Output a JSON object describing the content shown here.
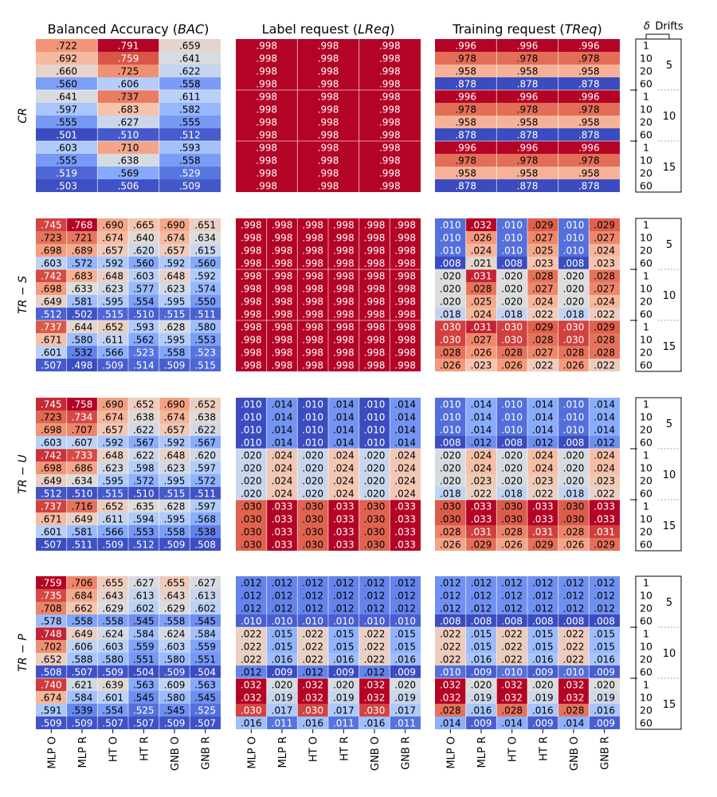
{
  "chart_data": {
    "type": "heatmap",
    "color_scale": {
      "name": "coolwarm",
      "low": "#3b4cc0",
      "mid": "#dddddd",
      "high": "#b40426"
    },
    "column_titles": {
      "bac_prefix": "Balanced Accuracy (",
      "bac_sym": "BAC",
      "bac_suffix": ")",
      "lreq_prefix": "Label request (",
      "lreq_sym": "LReq",
      "lreq_suffix": ")",
      "treq_prefix": "Training request (",
      "treq_sym": "TReq",
      "treq_suffix": ")"
    },
    "side_header": {
      "delta": "δ",
      "drifts": "Drifts"
    },
    "x_tick_labels": [
      "MLP O",
      "MLP R",
      "HT O",
      "HT R",
      "GNB O",
      "GNB R"
    ],
    "cr_x_tick_labels": [
      "MLP",
      "HT",
      "GNB"
    ],
    "delta_values": [
      "1",
      "10",
      "20",
      "60"
    ],
    "drift_values": [
      "5",
      "10",
      "15"
    ],
    "rows": [
      {
        "label": "CR",
        "bac": [
          [
            ".722",
            ".791",
            ".659"
          ],
          [
            ".692",
            ".759",
            ".641"
          ],
          [
            ".660",
            ".725",
            ".622"
          ],
          [
            ".560",
            ".606",
            ".558"
          ],
          [
            ".641",
            ".737",
            ".611"
          ],
          [
            ".597",
            ".683",
            ".582"
          ],
          [
            ".555",
            ".627",
            ".555"
          ],
          [
            ".501",
            ".510",
            ".512"
          ],
          [
            ".603",
            ".710",
            ".593"
          ],
          [
            ".555",
            ".638",
            ".558"
          ],
          [
            ".519",
            ".569",
            ".529"
          ],
          [
            ".503",
            ".506",
            ".509"
          ]
        ],
        "lreq": [
          [
            ".998",
            ".998",
            ".998"
          ],
          [
            ".998",
            ".998",
            ".998"
          ],
          [
            ".998",
            ".998",
            ".998"
          ],
          [
            ".998",
            ".998",
            ".998"
          ],
          [
            ".998",
            ".998",
            ".998"
          ],
          [
            ".998",
            ".998",
            ".998"
          ],
          [
            ".998",
            ".998",
            ".998"
          ],
          [
            ".998",
            ".998",
            ".998"
          ],
          [
            ".998",
            ".998",
            ".998"
          ],
          [
            ".998",
            ".998",
            ".998"
          ],
          [
            ".998",
            ".998",
            ".998"
          ],
          [
            ".998",
            ".998",
            ".998"
          ]
        ],
        "treq": [
          [
            ".996",
            ".996",
            ".996"
          ],
          [
            ".978",
            ".978",
            ".978"
          ],
          [
            ".958",
            ".958",
            ".958"
          ],
          [
            ".878",
            ".878",
            ".878"
          ],
          [
            ".996",
            ".996",
            ".996"
          ],
          [
            ".978",
            ".978",
            ".978"
          ],
          [
            ".958",
            ".958",
            ".958"
          ],
          [
            ".878",
            ".878",
            ".878"
          ],
          [
            ".996",
            ".996",
            ".996"
          ],
          [
            ".978",
            ".978",
            ".978"
          ],
          [
            ".958",
            ".958",
            ".958"
          ],
          [
            ".878",
            ".878",
            ".878"
          ]
        ]
      },
      {
        "label": "TR − S",
        "bac": [
          [
            ".745",
            ".768",
            ".690",
            ".665",
            ".690",
            ".651"
          ],
          [
            ".723",
            ".721",
            ".674",
            ".640",
            ".674",
            ".634"
          ],
          [
            ".698",
            ".689",
            ".657",
            ".620",
            ".657",
            ".615"
          ],
          [
            ".603",
            ".572",
            ".592",
            ".560",
            ".592",
            ".560"
          ],
          [
            ".742",
            ".683",
            ".648",
            ".603",
            ".648",
            ".592"
          ],
          [
            ".698",
            ".633",
            ".623",
            ".577",
            ".623",
            ".574"
          ],
          [
            ".649",
            ".581",
            ".595",
            ".554",
            ".595",
            ".550"
          ],
          [
            ".512",
            ".502",
            ".515",
            ".510",
            ".515",
            ".511"
          ],
          [
            ".737",
            ".644",
            ".652",
            ".593",
            ".628",
            ".580"
          ],
          [
            ".671",
            ".580",
            ".611",
            ".562",
            ".595",
            ".553"
          ],
          [
            ".601",
            ".532",
            ".566",
            ".523",
            ".558",
            ".523"
          ],
          [
            ".507",
            ".498",
            ".509",
            ".514",
            ".509",
            ".515"
          ]
        ],
        "lreq": [
          [
            ".998",
            ".998",
            ".998",
            ".998",
            ".998",
            ".998"
          ],
          [
            ".998",
            ".998",
            ".998",
            ".998",
            ".998",
            ".998"
          ],
          [
            ".998",
            ".998",
            ".998",
            ".998",
            ".998",
            ".998"
          ],
          [
            ".998",
            ".998",
            ".998",
            ".998",
            ".998",
            ".998"
          ],
          [
            ".998",
            ".998",
            ".998",
            ".998",
            ".998",
            ".998"
          ],
          [
            ".998",
            ".998",
            ".998",
            ".998",
            ".998",
            ".998"
          ],
          [
            ".998",
            ".998",
            ".998",
            ".998",
            ".998",
            ".998"
          ],
          [
            ".998",
            ".998",
            ".998",
            ".998",
            ".998",
            ".998"
          ],
          [
            ".998",
            ".998",
            ".998",
            ".998",
            ".998",
            ".998"
          ],
          [
            ".998",
            ".998",
            ".998",
            ".998",
            ".998",
            ".998"
          ],
          [
            ".998",
            ".998",
            ".998",
            ".998",
            ".998",
            ".998"
          ],
          [
            ".998",
            ".998",
            ".998",
            ".998",
            ".998",
            ".998"
          ]
        ],
        "treq": [
          [
            ".010",
            ".032",
            ".010",
            ".029",
            ".010",
            ".029"
          ],
          [
            ".010",
            ".026",
            ".010",
            ".027",
            ".010",
            ".027"
          ],
          [
            ".010",
            ".024",
            ".010",
            ".025",
            ".010",
            ".024"
          ],
          [
            ".008",
            ".021",
            ".008",
            ".023",
            ".008",
            ".023"
          ],
          [
            ".020",
            ".031",
            ".020",
            ".028",
            ".020",
            ".028"
          ],
          [
            ".020",
            ".028",
            ".020",
            ".027",
            ".020",
            ".027"
          ],
          [
            ".020",
            ".025",
            ".020",
            ".024",
            ".020",
            ".024"
          ],
          [
            ".018",
            ".024",
            ".018",
            ".022",
            ".018",
            ".022"
          ],
          [
            ".030",
            ".031",
            ".030",
            ".029",
            ".030",
            ".029"
          ],
          [
            ".030",
            ".027",
            ".030",
            ".028",
            ".030",
            ".028"
          ],
          [
            ".028",
            ".026",
            ".028",
            ".027",
            ".028",
            ".028"
          ],
          [
            ".026",
            ".023",
            ".026",
            ".022",
            ".026",
            ".022"
          ]
        ]
      },
      {
        "label": "TR − U",
        "bac": [
          [
            ".745",
            ".758",
            ".690",
            ".652",
            ".690",
            ".652"
          ],
          [
            ".723",
            ".734",
            ".674",
            ".638",
            ".674",
            ".638"
          ],
          [
            ".698",
            ".707",
            ".657",
            ".622",
            ".657",
            ".622"
          ],
          [
            ".603",
            ".607",
            ".592",
            ".567",
            ".592",
            ".567"
          ],
          [
            ".742",
            ".733",
            ".648",
            ".622",
            ".648",
            ".620"
          ],
          [
            ".698",
            ".686",
            ".623",
            ".598",
            ".623",
            ".597"
          ],
          [
            ".649",
            ".634",
            ".595",
            ".572",
            ".595",
            ".572"
          ],
          [
            ".512",
            ".510",
            ".515",
            ".510",
            ".515",
            ".511"
          ],
          [
            ".737",
            ".716",
            ".652",
            ".635",
            ".628",
            ".597"
          ],
          [
            ".671",
            ".649",
            ".611",
            ".594",
            ".595",
            ".568"
          ],
          [
            ".601",
            ".581",
            ".566",
            ".553",
            ".558",
            ".538"
          ],
          [
            ".507",
            ".511",
            ".509",
            ".512",
            ".509",
            ".508"
          ]
        ],
        "lreq": [
          [
            ".010",
            ".014",
            ".010",
            ".014",
            ".010",
            ".014"
          ],
          [
            ".010",
            ".014",
            ".010",
            ".014",
            ".010",
            ".014"
          ],
          [
            ".010",
            ".014",
            ".010",
            ".014",
            ".010",
            ".014"
          ],
          [
            ".010",
            ".014",
            ".010",
            ".014",
            ".010",
            ".014"
          ],
          [
            ".020",
            ".024",
            ".020",
            ".024",
            ".020",
            ".024"
          ],
          [
            ".020",
            ".024",
            ".020",
            ".024",
            ".020",
            ".024"
          ],
          [
            ".020",
            ".024",
            ".020",
            ".024",
            ".020",
            ".024"
          ],
          [
            ".020",
            ".024",
            ".020",
            ".024",
            ".020",
            ".024"
          ],
          [
            ".030",
            ".033",
            ".030",
            ".033",
            ".030",
            ".033"
          ],
          [
            ".030",
            ".033",
            ".030",
            ".033",
            ".030",
            ".033"
          ],
          [
            ".030",
            ".033",
            ".030",
            ".033",
            ".030",
            ".033"
          ],
          [
            ".030",
            ".033",
            ".030",
            ".033",
            ".030",
            ".033"
          ]
        ],
        "treq": [
          [
            ".010",
            ".014",
            ".010",
            ".014",
            ".010",
            ".014"
          ],
          [
            ".010",
            ".014",
            ".010",
            ".014",
            ".010",
            ".014"
          ],
          [
            ".010",
            ".014",
            ".010",
            ".014",
            ".010",
            ".014"
          ],
          [
            ".008",
            ".012",
            ".008",
            ".012",
            ".008",
            ".012"
          ],
          [
            ".020",
            ".024",
            ".020",
            ".024",
            ".020",
            ".024"
          ],
          [
            ".020",
            ".024",
            ".020",
            ".024",
            ".020",
            ".024"
          ],
          [
            ".020",
            ".023",
            ".020",
            ".023",
            ".020",
            ".023"
          ],
          [
            ".018",
            ".022",
            ".018",
            ".022",
            ".018",
            ".022"
          ],
          [
            ".030",
            ".033",
            ".030",
            ".033",
            ".030",
            ".033"
          ],
          [
            ".030",
            ".033",
            ".030",
            ".033",
            ".030",
            ".033"
          ],
          [
            ".028",
            ".031",
            ".028",
            ".031",
            ".028",
            ".031"
          ],
          [
            ".026",
            ".029",
            ".026",
            ".029",
            ".026",
            ".029"
          ]
        ]
      },
      {
        "label": "TR − P",
        "bac": [
          [
            ".759",
            ".706",
            ".655",
            ".627",
            ".655",
            ".627"
          ],
          [
            ".735",
            ".684",
            ".643",
            ".613",
            ".643",
            ".613"
          ],
          [
            ".708",
            ".662",
            ".629",
            ".602",
            ".629",
            ".602"
          ],
          [
            ".578",
            ".558",
            ".558",
            ".545",
            ".558",
            ".545"
          ],
          [
            ".748",
            ".649",
            ".624",
            ".584",
            ".624",
            ".584"
          ],
          [
            ".702",
            ".606",
            ".603",
            ".559",
            ".603",
            ".559"
          ],
          [
            ".652",
            ".588",
            ".580",
            ".551",
            ".580",
            ".551"
          ],
          [
            ".508",
            ".507",
            ".509",
            ".504",
            ".509",
            ".504"
          ],
          [
            ".740",
            ".621",
            ".639",
            ".563",
            ".609",
            ".563"
          ],
          [
            ".674",
            ".584",
            ".601",
            ".545",
            ".580",
            ".545"
          ],
          [
            ".591",
            ".539",
            ".554",
            ".525",
            ".545",
            ".525"
          ],
          [
            ".509",
            ".509",
            ".507",
            ".507",
            ".509",
            ".507"
          ]
        ],
        "lreq": [
          [
            ".012",
            ".012",
            ".012",
            ".012",
            ".012",
            ".012"
          ],
          [
            ".012",
            ".012",
            ".012",
            ".012",
            ".012",
            ".012"
          ],
          [
            ".012",
            ".012",
            ".012",
            ".012",
            ".012",
            ".012"
          ],
          [
            ".010",
            ".010",
            ".010",
            ".010",
            ".010",
            ".010"
          ],
          [
            ".022",
            ".015",
            ".022",
            ".015",
            ".022",
            ".015"
          ],
          [
            ".022",
            ".015",
            ".022",
            ".015",
            ".022",
            ".015"
          ],
          [
            ".022",
            ".016",
            ".022",
            ".016",
            ".022",
            ".016"
          ],
          [
            ".012",
            ".009",
            ".012",
            ".009",
            ".012",
            ".009"
          ],
          [
            ".032",
            ".020",
            ".032",
            ".020",
            ".032",
            ".020"
          ],
          [
            ".032",
            ".019",
            ".032",
            ".019",
            ".032",
            ".019"
          ],
          [
            ".030",
            ".017",
            ".030",
            ".017",
            ".030",
            ".017"
          ],
          [
            ".016",
            ".011",
            ".016",
            ".011",
            ".016",
            ".011"
          ]
        ],
        "treq": [
          [
            ".012",
            ".012",
            ".012",
            ".012",
            ".012",
            ".012"
          ],
          [
            ".012",
            ".012",
            ".012",
            ".012",
            ".012",
            ".012"
          ],
          [
            ".012",
            ".012",
            ".012",
            ".012",
            ".012",
            ".012"
          ],
          [
            ".008",
            ".008",
            ".008",
            ".008",
            ".008",
            ".008"
          ],
          [
            ".022",
            ".015",
            ".022",
            ".015",
            ".022",
            ".015"
          ],
          [
            ".022",
            ".015",
            ".022",
            ".015",
            ".022",
            ".015"
          ],
          [
            ".022",
            ".016",
            ".022",
            ".016",
            ".022",
            ".016"
          ],
          [
            ".010",
            ".009",
            ".010",
            ".009",
            ".010",
            ".009"
          ],
          [
            ".032",
            ".020",
            ".032",
            ".020",
            ".032",
            ".020"
          ],
          [
            ".032",
            ".019",
            ".032",
            ".019",
            ".032",
            ".019"
          ],
          [
            ".028",
            ".016",
            ".028",
            ".016",
            ".028",
            ".016"
          ],
          [
            ".014",
            ".009",
            ".014",
            ".009",
            ".014",
            ".009"
          ]
        ]
      }
    ]
  }
}
